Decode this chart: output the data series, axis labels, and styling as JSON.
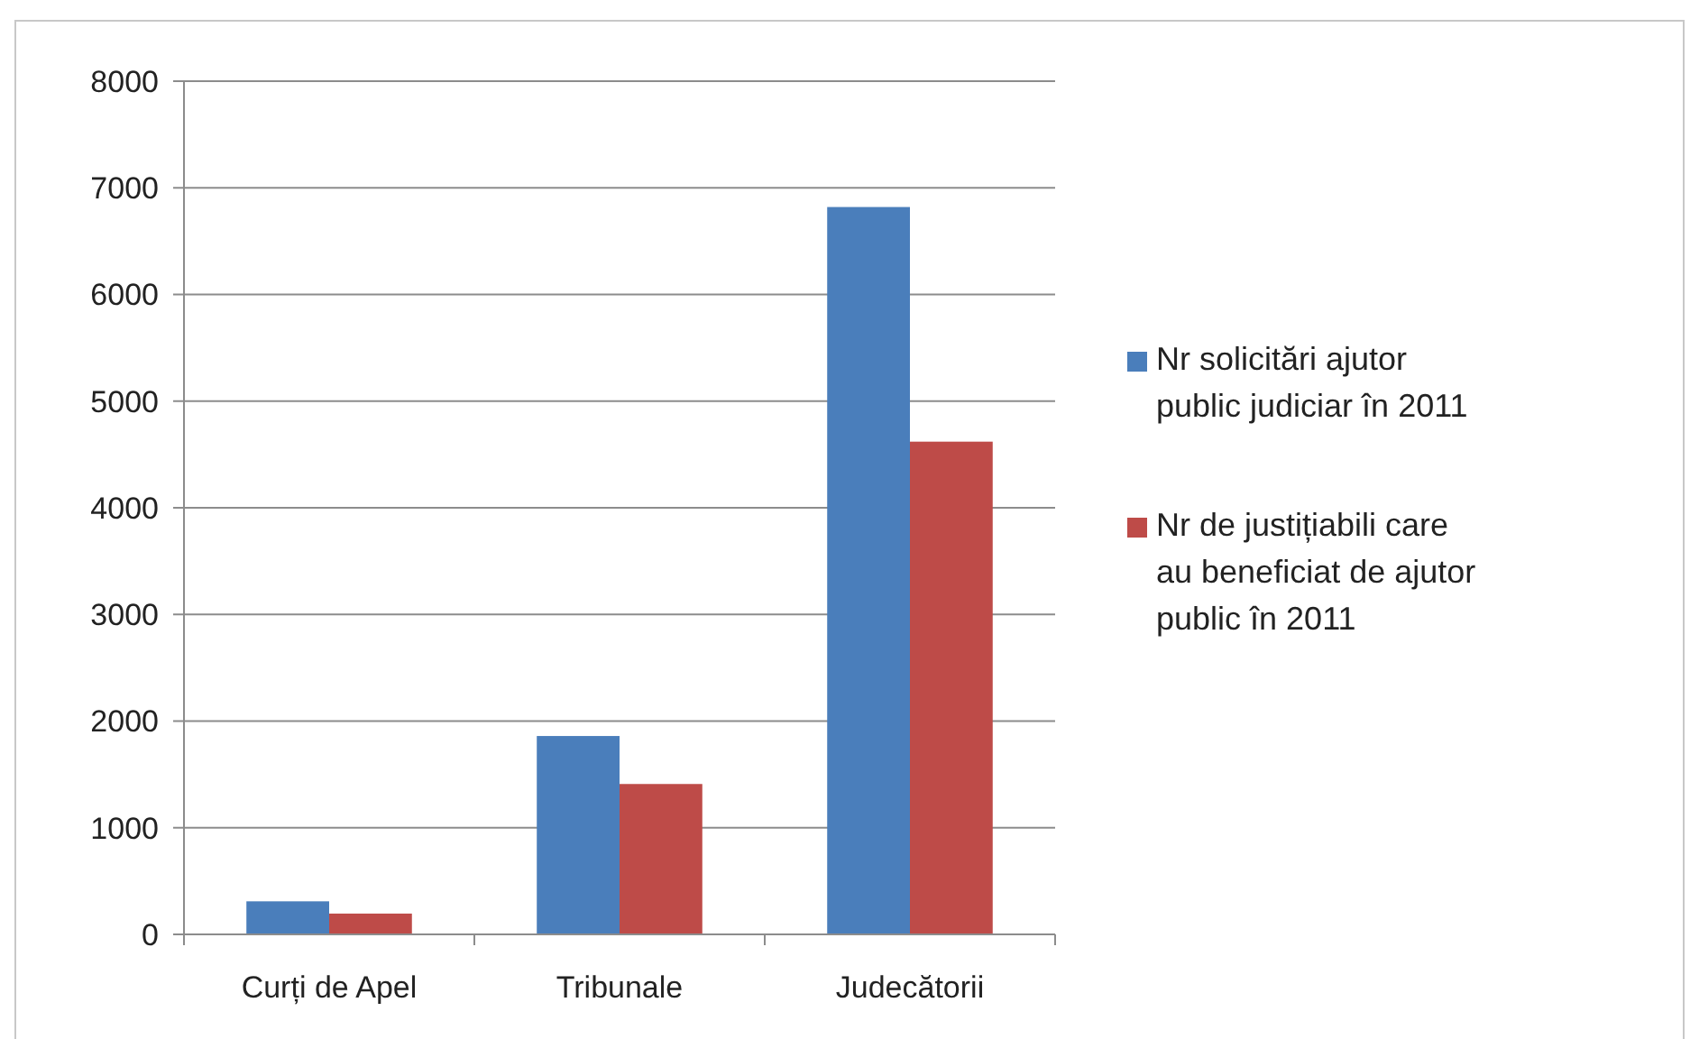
{
  "chart_data": {
    "type": "bar",
    "categories": [
      "Curți de Apel",
      "Tribunale",
      "Judecătorii"
    ],
    "series": [
      {
        "name": "Nr solicitări ajutor public judiciar în 2011",
        "color": "#4a7ebb",
        "values": [
          310,
          1860,
          6820
        ]
      },
      {
        "name": "Nr de justițiabili care au beneficiat de ajutor public în 2011",
        "color": "#be4b48",
        "values": [
          195,
          1410,
          4620
        ]
      }
    ],
    "ylim": [
      0,
      8000
    ],
    "yticks": [
      0,
      1000,
      2000,
      3000,
      4000,
      5000,
      6000,
      7000,
      8000
    ],
    "grid": "y",
    "legend": "right"
  }
}
